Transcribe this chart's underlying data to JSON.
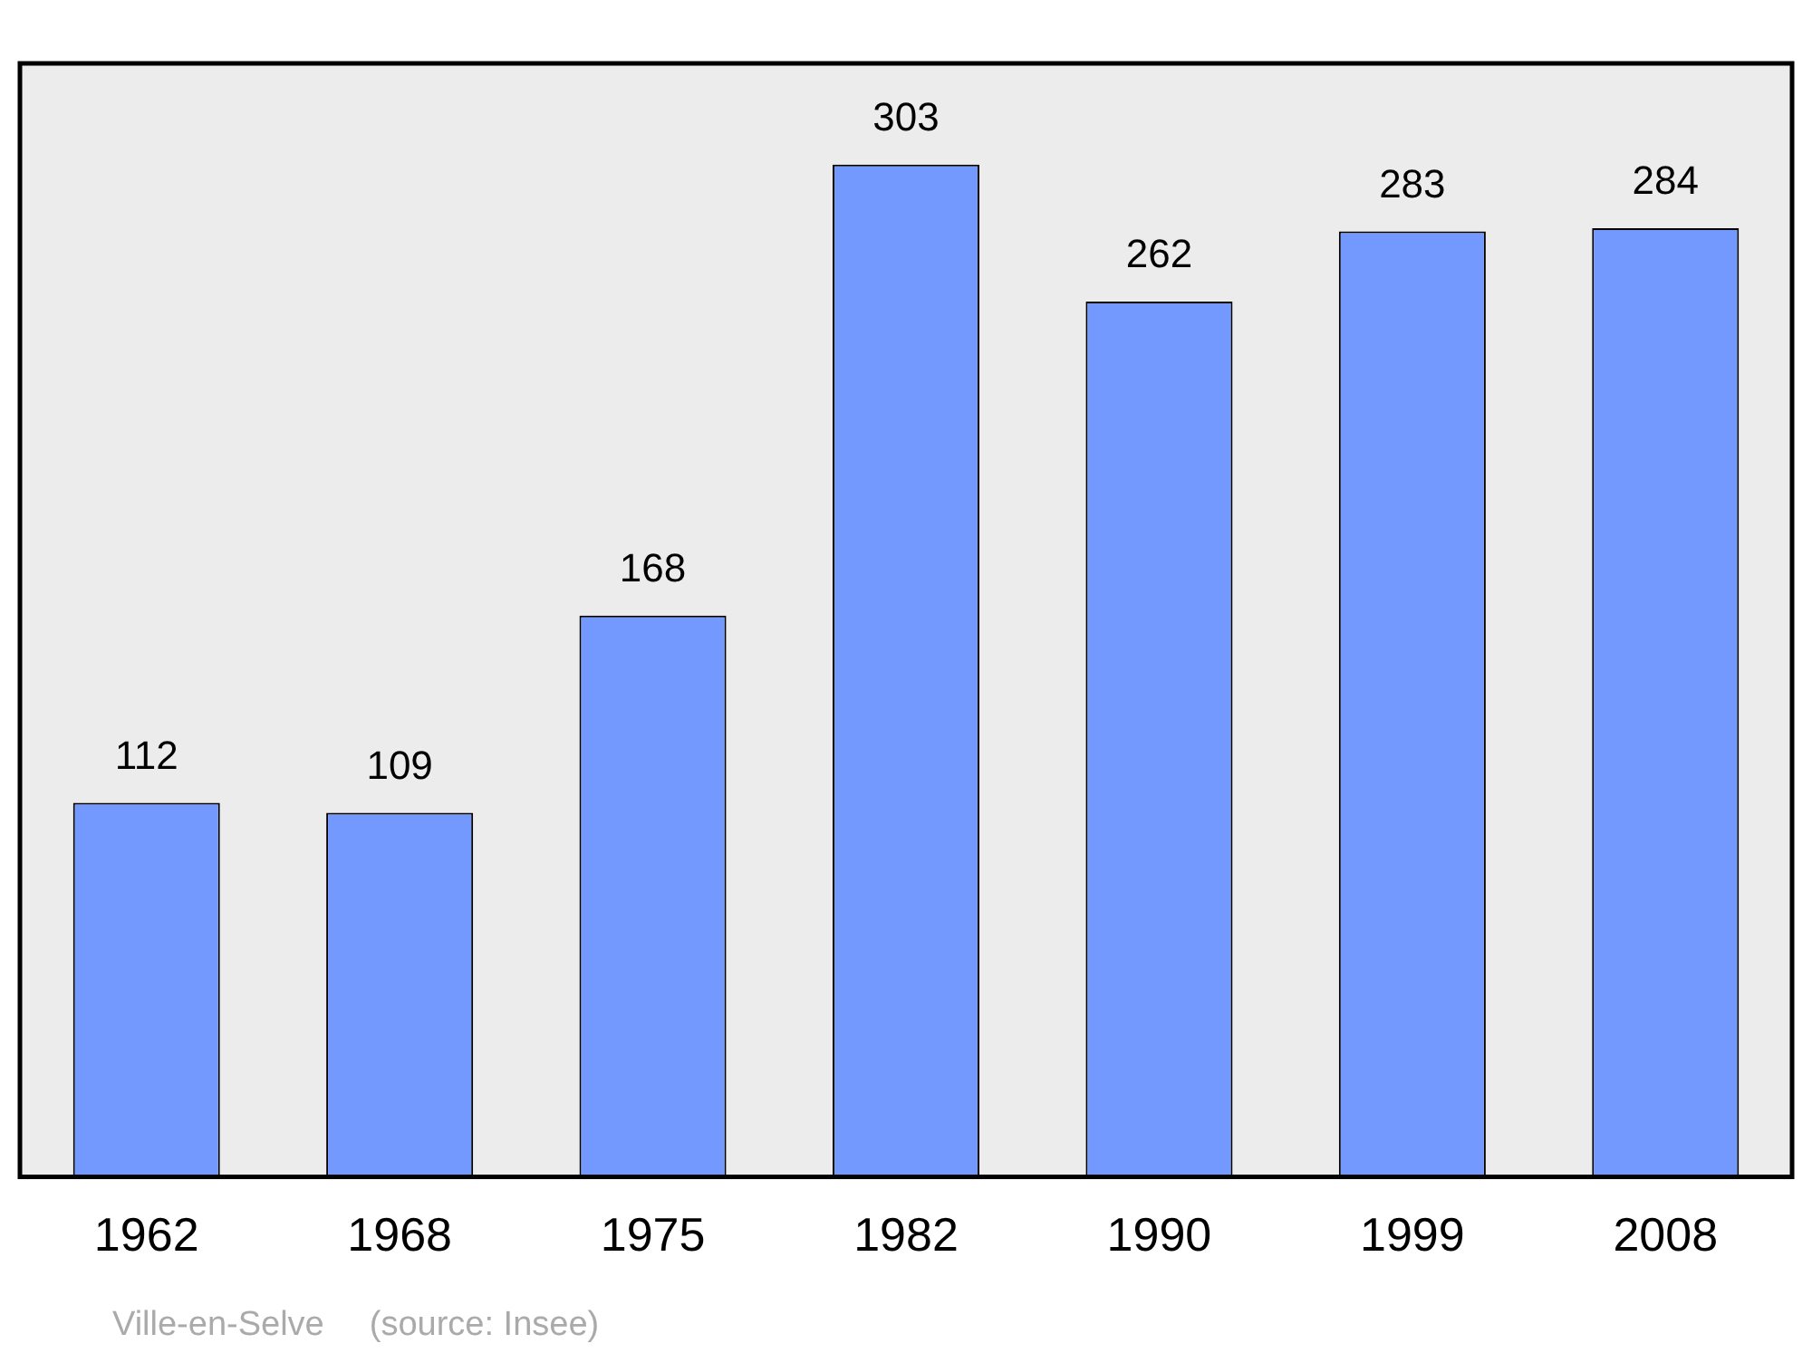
{
  "chart_data": {
    "type": "bar",
    "categories": [
      "1962",
      "1968",
      "1975",
      "1982",
      "1990",
      "1999",
      "2008"
    ],
    "values": [
      112,
      109,
      168,
      303,
      262,
      283,
      284
    ],
    "color": "#7399ff",
    "data_labels": true,
    "grid": false,
    "legend": false,
    "annotations": [
      "Ville-en-Selve",
      "(source: Insee)"
    ]
  }
}
